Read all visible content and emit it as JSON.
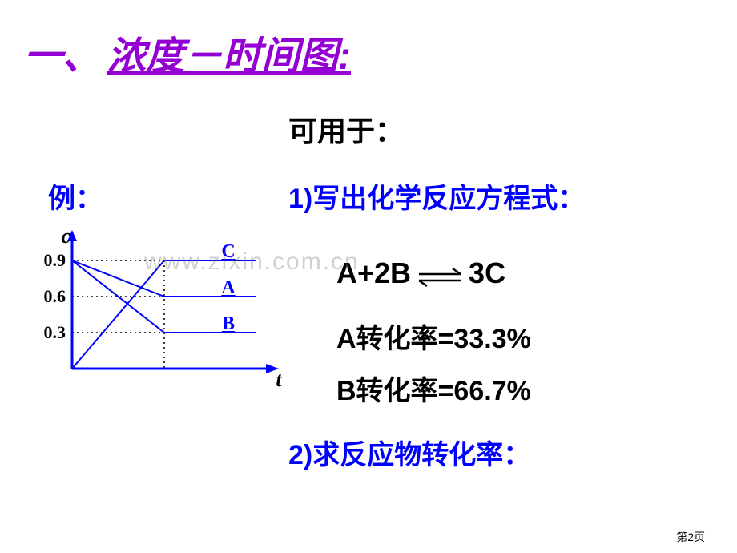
{
  "title": {
    "prefix": "一、",
    "main": "浓度－时间图:"
  },
  "subtitle": "可用于：",
  "example_label": "例：",
  "task1": "1)写出化学反应方程式：",
  "equation": {
    "lhs": "A+2B",
    "rhs": "3C"
  },
  "conversion_a": "A转化率=33.3%",
  "conversion_b": "B转化率=66.7%",
  "task2": "2)求反应物转化率：",
  "watermark": "www.zixin.com.cn",
  "page_num": "第2页",
  "graph": {
    "type": "line",
    "y_axis_label": "c",
    "x_axis_label": "t",
    "y_ticks": [
      0.3,
      0.6,
      0.9
    ],
    "y_tick_labels": [
      "0.3",
      "0.6",
      "0.9"
    ],
    "ylim": [
      0,
      1.0
    ],
    "series_labels": [
      "C",
      "A",
      "B"
    ],
    "series": {
      "A": {
        "points": [
          [
            0,
            0.9
          ],
          [
            1,
            0.6
          ],
          [
            2,
            0.6
          ]
        ],
        "color": "#0000ff"
      },
      "B": {
        "points": [
          [
            0,
            0.9
          ],
          [
            1,
            0.3
          ],
          [
            2,
            0.3
          ]
        ],
        "color": "#0000ff"
      },
      "C": {
        "points": [
          [
            0,
            0.0
          ],
          [
            1,
            0.9
          ],
          [
            2,
            0.9
          ]
        ],
        "color": "#0000ff"
      }
    },
    "axis_color": "#0000ff",
    "tick_line_color": "#000000",
    "label_color": "#0000ff",
    "y_label_color": "#000000",
    "tick_fontsize": 22,
    "axis_label_fontsize": 26,
    "series_label_fontsize": 24,
    "line_width": 2,
    "axis_width": 3,
    "dotted_dash": "2,4"
  }
}
